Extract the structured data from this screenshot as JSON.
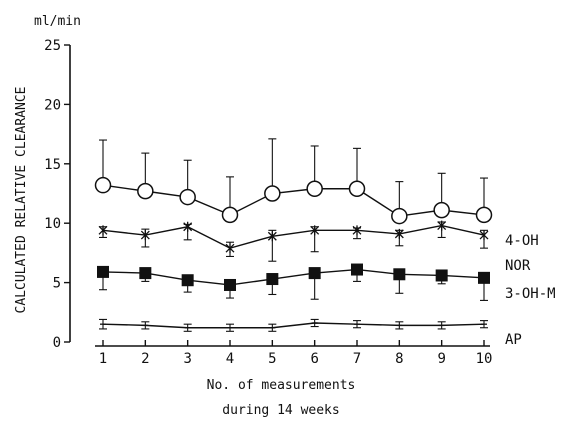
{
  "chart_data": {
    "type": "line",
    "unit_label": "ml/min",
    "ylabel": "CALCULATED RELATIVE CLEARANCE",
    "xlabel_line1": "No. of measurements",
    "xlabel_line2": "during 14 weeks",
    "ylim": [
      0,
      25
    ],
    "y_ticks": [
      0,
      5,
      10,
      15,
      20,
      25
    ],
    "y_tick_labels": [
      "0",
      "5",
      "10",
      "15",
      "20",
      "25"
    ],
    "x": [
      1,
      2,
      3,
      4,
      5,
      6,
      7,
      8,
      9,
      10
    ],
    "x_tick_labels": [
      "1",
      "2",
      "3",
      "4",
      "5",
      "6",
      "7",
      "8",
      "9",
      "10"
    ],
    "grid": false,
    "series": [
      {
        "name": "4-OH",
        "marker": "open-circle",
        "values": [
          13.2,
          12.7,
          12.2,
          10.7,
          12.5,
          12.9,
          12.9,
          10.6,
          11.1,
          10.7
        ],
        "error_upper": [
          17.0,
          15.9,
          15.3,
          13.9,
          17.1,
          16.5,
          16.3,
          13.5,
          14.2,
          13.8
        ],
        "error_lower": null
      },
      {
        "name": "NOR",
        "marker": "asterisk",
        "values": [
          9.4,
          9.0,
          9.7,
          7.9,
          8.9,
          9.4,
          9.4,
          9.1,
          9.8,
          9.0
        ],
        "error_upper": [
          9.7,
          9.5,
          9.9,
          8.4,
          9.4,
          9.7,
          9.6,
          9.4,
          10.1,
          9.4
        ],
        "error_lower": [
          8.8,
          8.0,
          8.6,
          7.2,
          6.8,
          7.6,
          8.7,
          8.1,
          8.8,
          7.9
        ]
      },
      {
        "name": "3-OH-M",
        "marker": "filled-square",
        "values": [
          5.9,
          5.8,
          5.2,
          4.8,
          5.3,
          5.8,
          6.1,
          5.7,
          5.6,
          5.4
        ],
        "error_upper": null,
        "error_lower": [
          4.4,
          5.1,
          4.2,
          3.7,
          4.0,
          3.6,
          5.1,
          4.1,
          4.9,
          3.5
        ]
      },
      {
        "name": "AP",
        "marker": "tick",
        "values": [
          1.5,
          1.4,
          1.2,
          1.2,
          1.2,
          1.6,
          1.5,
          1.4,
          1.4,
          1.5
        ],
        "error_upper": [
          1.9,
          1.7,
          1.5,
          1.5,
          1.5,
          1.9,
          1.8,
          1.7,
          1.7,
          1.8
        ],
        "error_lower": [
          1.1,
          1.1,
          0.9,
          0.9,
          0.9,
          1.3,
          1.2,
          1.1,
          1.1,
          1.2
        ]
      }
    ]
  }
}
